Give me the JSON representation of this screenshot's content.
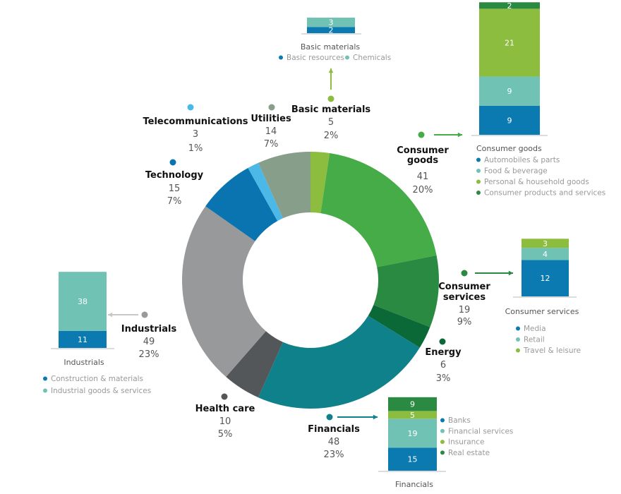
{
  "chart_data": [
    {
      "type": "pie",
      "variant": "donut",
      "total_order": "clockwise from top",
      "slices": [
        {
          "name": "Basic materials",
          "value": 5,
          "percent": "2%",
          "color": "#8cbd3f"
        },
        {
          "name": "Consumer goods",
          "value": 41,
          "percent": "20%",
          "color": "#45ac48"
        },
        {
          "name": "Consumer services",
          "value": 19,
          "percent": "9%",
          "color": "#2b8a41"
        },
        {
          "name": "Energy",
          "value": 6,
          "percent": "3%",
          "color": "#0a6937"
        },
        {
          "name": "Financials",
          "value": 48,
          "percent": "23%",
          "color": "#0f818b"
        },
        {
          "name": "Health care",
          "value": 10,
          "percent": "5%",
          "color": "#54575a"
        },
        {
          "name": "Industrials",
          "value": 49,
          "percent": "23%",
          "color": "#97999b"
        },
        {
          "name": "Technology",
          "value": 15,
          "percent": "7%",
          "color": "#0a74b0"
        },
        {
          "name": "Telecommunications",
          "value": 3,
          "percent": "1%",
          "color": "#4cb8e8"
        },
        {
          "name": "Utilities",
          "value": 14,
          "percent": "7%",
          "color": "#869e8a"
        }
      ]
    },
    {
      "type": "bar",
      "stacked": true,
      "title": "Basic materials",
      "series": [
        {
          "name": "Basic resources",
          "value": 2,
          "color": "#0a7ab0"
        },
        {
          "name": "Chemicals",
          "value": 3,
          "color": "#6fc2b4"
        }
      ]
    },
    {
      "type": "bar",
      "stacked": true,
      "title": "Consumer goods",
      "series": [
        {
          "name": "Automobiles & parts",
          "value": 9,
          "color": "#0a7ab0"
        },
        {
          "name": "Food & beverage",
          "value": 9,
          "color": "#6fc2b4"
        },
        {
          "name": "Personal & household goods",
          "value": 21,
          "color": "#8cbd3f"
        },
        {
          "name": "Consumer products and services",
          "value": 2,
          "color": "#2b8a41"
        }
      ]
    },
    {
      "type": "bar",
      "stacked": true,
      "title": "Consumer services",
      "series": [
        {
          "name": "Media",
          "value": 12,
          "color": "#0a7ab0"
        },
        {
          "name": "Retail",
          "value": 4,
          "color": "#6fc2b4"
        },
        {
          "name": "Travel & leisure",
          "value": 3,
          "color": "#8cbd3f"
        }
      ]
    },
    {
      "type": "bar",
      "stacked": true,
      "title": "Industrials",
      "series": [
        {
          "name": "Construction & materials",
          "value": 11,
          "color": "#0a7ab0"
        },
        {
          "name": "Industrial goods & services",
          "value": 38,
          "color": "#6fc2b4"
        }
      ]
    },
    {
      "type": "bar",
      "stacked": true,
      "title": "Financials",
      "series": [
        {
          "name": "Banks",
          "value": 15,
          "color": "#0a7ab0"
        },
        {
          "name": "Financial services",
          "value": 19,
          "color": "#6fc2b4"
        },
        {
          "name": "Insurance",
          "value": 5,
          "color": "#8cbd3f"
        },
        {
          "name": "Real estate",
          "value": 9,
          "color": "#2b8a41"
        }
      ]
    }
  ]
}
